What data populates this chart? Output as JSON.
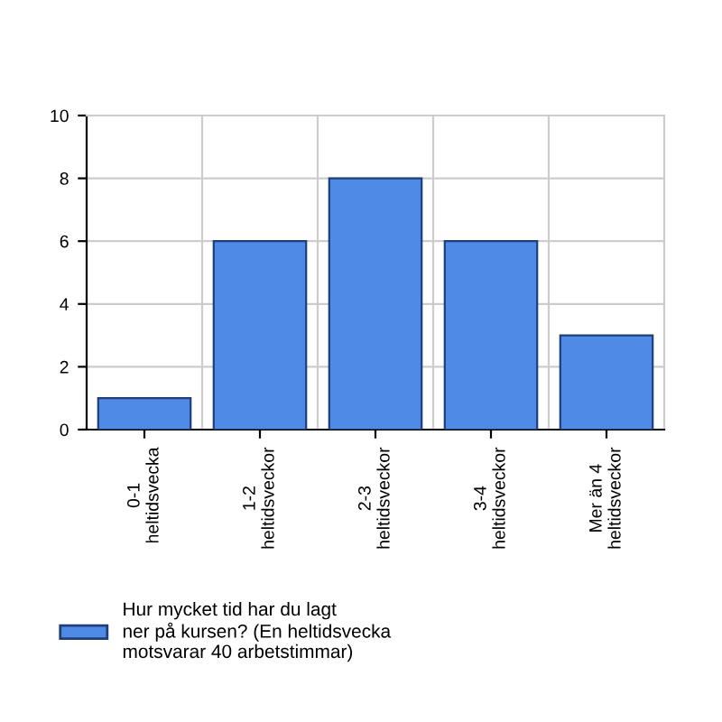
{
  "chart_data": {
    "type": "bar",
    "categories": [
      "0-1\nheltidsvecka",
      "1-2\nheltidsveckor",
      "2-3\nheltidsveckor",
      "3-4\nheltidsveckor",
      "Mer än 4\nheltidsveckor"
    ],
    "series": [
      {
        "name": "Hur mycket tid har du lagt\nner på kursen? (En heltidsvecka\nmotsvarar 40 arbetstimmar)",
        "color": "#4f8be6",
        "values": [
          1,
          6,
          8,
          6,
          3
        ]
      }
    ],
    "ylim": [
      0,
      10
    ],
    "yticks": [
      0,
      2,
      4,
      6,
      8,
      10
    ],
    "grid": true,
    "legend": "bottom"
  }
}
